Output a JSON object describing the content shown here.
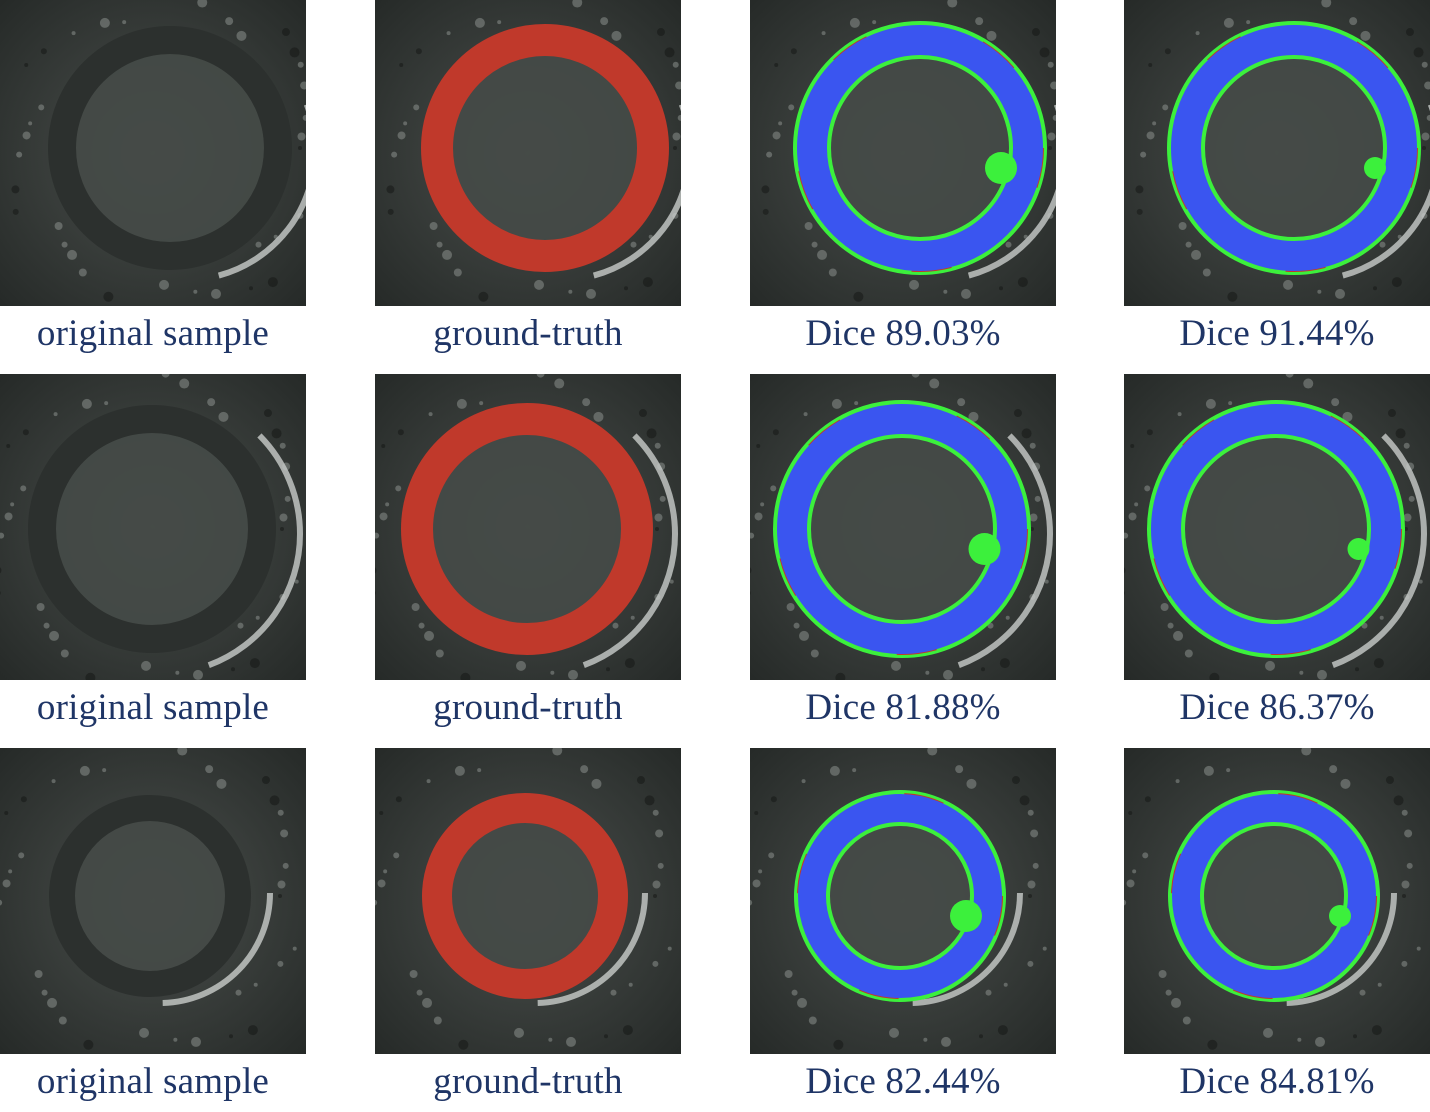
{
  "figure": {
    "rows": [
      {
        "panels": [
          {
            "type": "original",
            "caption": "original sample"
          },
          {
            "type": "ground-truth",
            "caption": "ground-truth"
          },
          {
            "type": "prediction",
            "caption": "Dice 89.03%",
            "dice_percent": 89.03
          },
          {
            "type": "prediction",
            "caption": "Dice 91.44%",
            "dice_percent": 91.44
          }
        ]
      },
      {
        "panels": [
          {
            "type": "original",
            "caption": "original sample"
          },
          {
            "type": "ground-truth",
            "caption": "ground-truth"
          },
          {
            "type": "prediction",
            "caption": "Dice 81.88%",
            "dice_percent": 81.88
          },
          {
            "type": "prediction",
            "caption": "Dice 86.37%",
            "dice_percent": 86.37
          }
        ]
      },
      {
        "panels": [
          {
            "type": "original",
            "caption": "original sample"
          },
          {
            "type": "ground-truth",
            "caption": "ground-truth"
          },
          {
            "type": "prediction",
            "caption": "Dice 82.44%",
            "dice_percent": 82.44
          },
          {
            "type": "prediction",
            "caption": "Dice 84.81%",
            "dice_percent": 84.81
          }
        ]
      }
    ],
    "colors": {
      "ground_truth": "#c0392b",
      "overlap": "#3a55f0",
      "false_positive": "#3cf03c",
      "false_negative": "#c0392b",
      "caption_text": "#1f3566"
    }
  }
}
